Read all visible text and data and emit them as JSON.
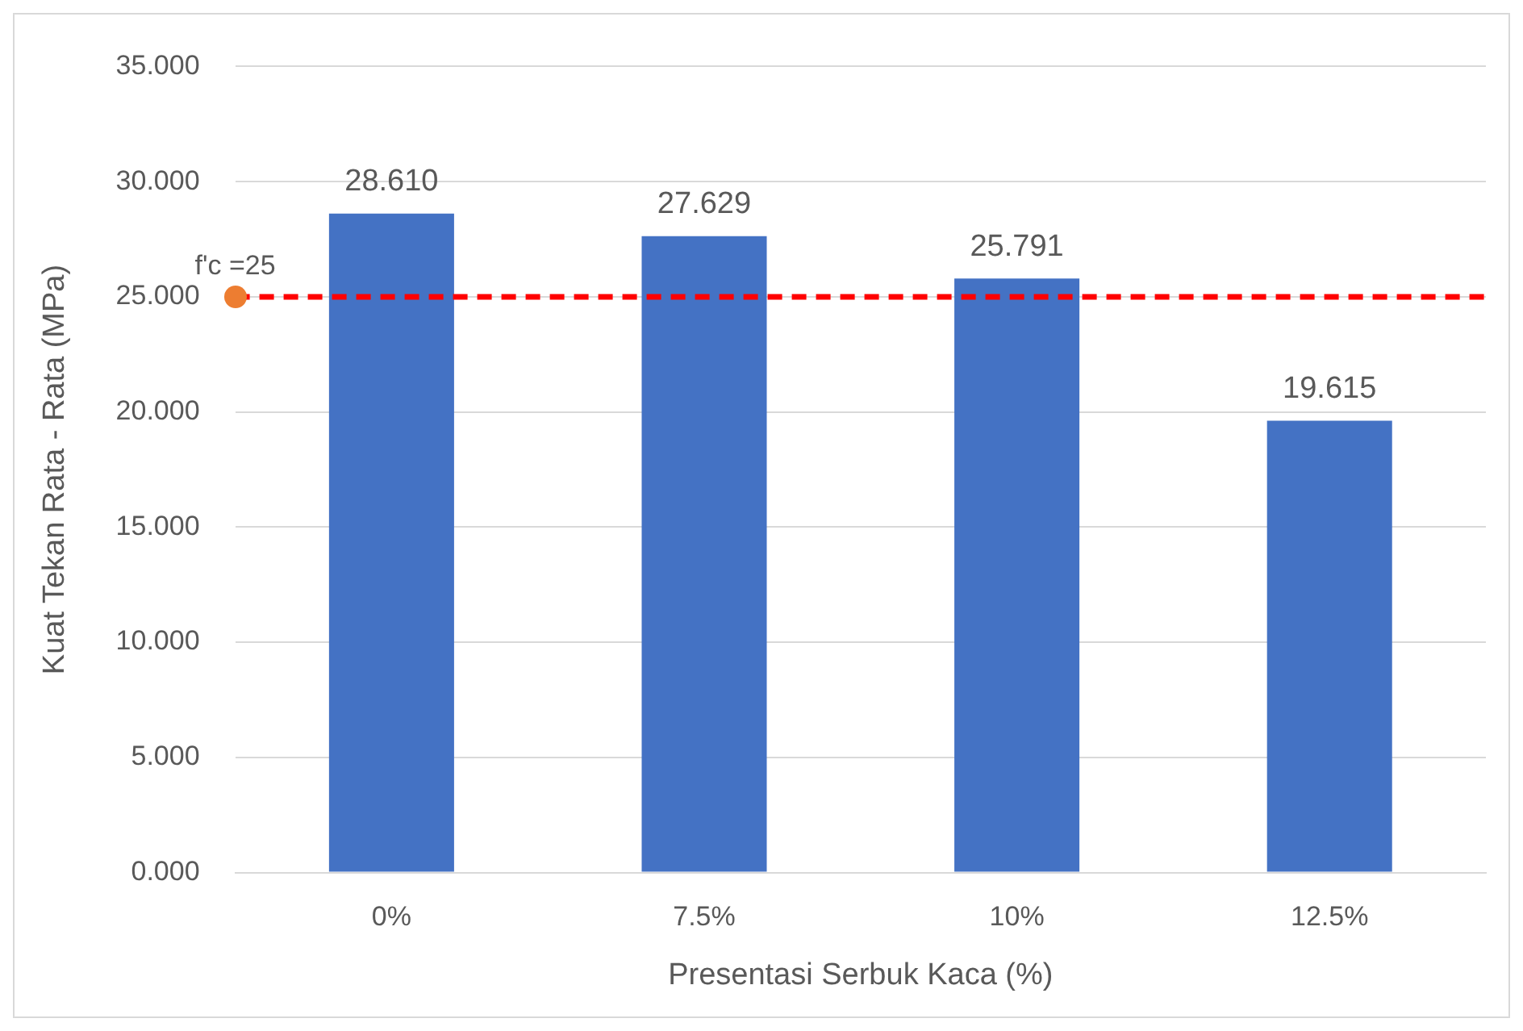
{
  "chart_data": {
    "type": "bar",
    "xlabel": "Presentasi Serbuk Kaca (%)",
    "ylabel": "Kuat Tekan Rata - Rata (MPa)",
    "categories": [
      "0%",
      "7.5%",
      "10%",
      "12.5%"
    ],
    "values": [
      28.61,
      27.629,
      25.791,
      19.615
    ],
    "value_labels": [
      "28.610",
      "27.629",
      "25.791",
      "19.615"
    ],
    "color": "#4472c4",
    "ylim": [
      0,
      35
    ],
    "yticks": [
      {
        "value": 0,
        "label": "0.000"
      },
      {
        "value": 5,
        "label": "5.000"
      },
      {
        "value": 10,
        "label": "10.000"
      },
      {
        "value": 15,
        "label": "15.000"
      },
      {
        "value": 20,
        "label": "20.000"
      },
      {
        "value": 25,
        "label": "25.000"
      },
      {
        "value": 30,
        "label": "30.000"
      },
      {
        "value": 35,
        "label": "35.000"
      }
    ],
    "grid": "y",
    "ref_lines": [
      {
        "axis": "y",
        "value": 25,
        "label": "f'c =25",
        "color": "#ff0000",
        "line_style": "dashed"
      }
    ]
  }
}
